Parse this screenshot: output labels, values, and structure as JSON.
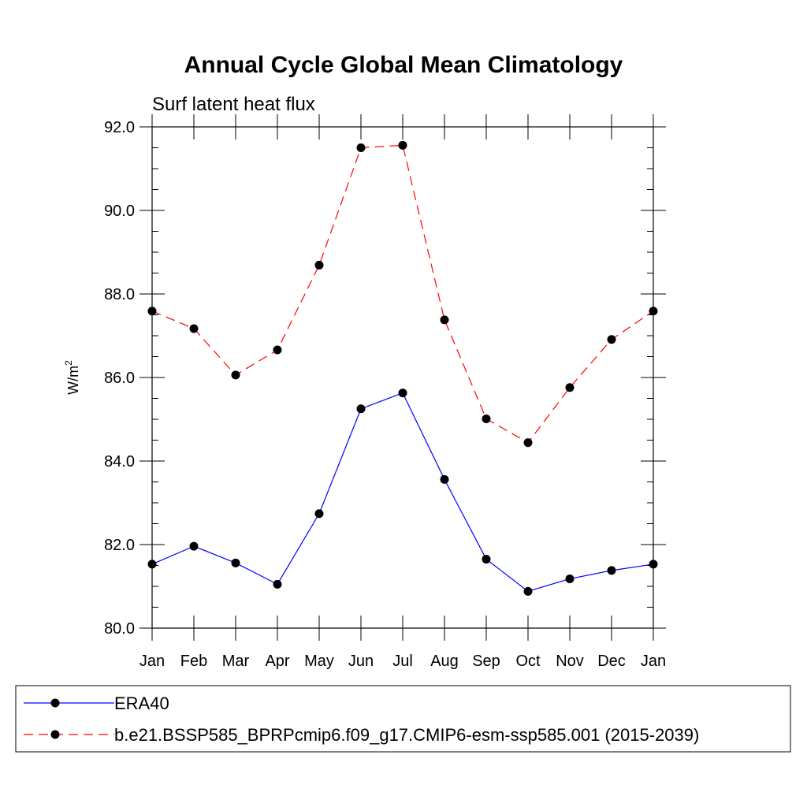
{
  "chart_data": {
    "type": "line",
    "title": "Annual Cycle Global Mean Climatology",
    "subtitle": "Surf latent heat flux",
    "xlabel": "",
    "ylabel": "W/m",
    "ylabel_superscript": "2",
    "categories": [
      "Jan",
      "Feb",
      "Mar",
      "Apr",
      "May",
      "Jun",
      "Jul",
      "Aug",
      "Sep",
      "Oct",
      "Nov",
      "Dec",
      "Jan"
    ],
    "ylim": [
      80.0,
      92.0
    ],
    "yticks": [
      "80.0",
      "82.0",
      "84.0",
      "86.0",
      "88.0",
      "90.0",
      "92.0"
    ],
    "grid": false,
    "legend_position": "bottom",
    "series": [
      {
        "name": "ERA40",
        "color": "#0000ff",
        "dash": "solid",
        "marker": "circle",
        "values": [
          81.53,
          81.96,
          81.56,
          81.05,
          82.74,
          85.25,
          85.63,
          83.56,
          81.65,
          80.88,
          81.18,
          81.38,
          81.53
        ]
      },
      {
        "name": "b.e21.BSSP585_BPRPcmip6.f09_g17.CMIP6-esm-ssp585.001 (2015-2039)",
        "color": "#ff0000",
        "dash": "dashed",
        "marker": "circle",
        "values": [
          87.59,
          87.17,
          86.06,
          86.66,
          88.69,
          91.5,
          91.56,
          87.38,
          85.01,
          84.44,
          85.76,
          86.91,
          87.59
        ]
      }
    ]
  }
}
